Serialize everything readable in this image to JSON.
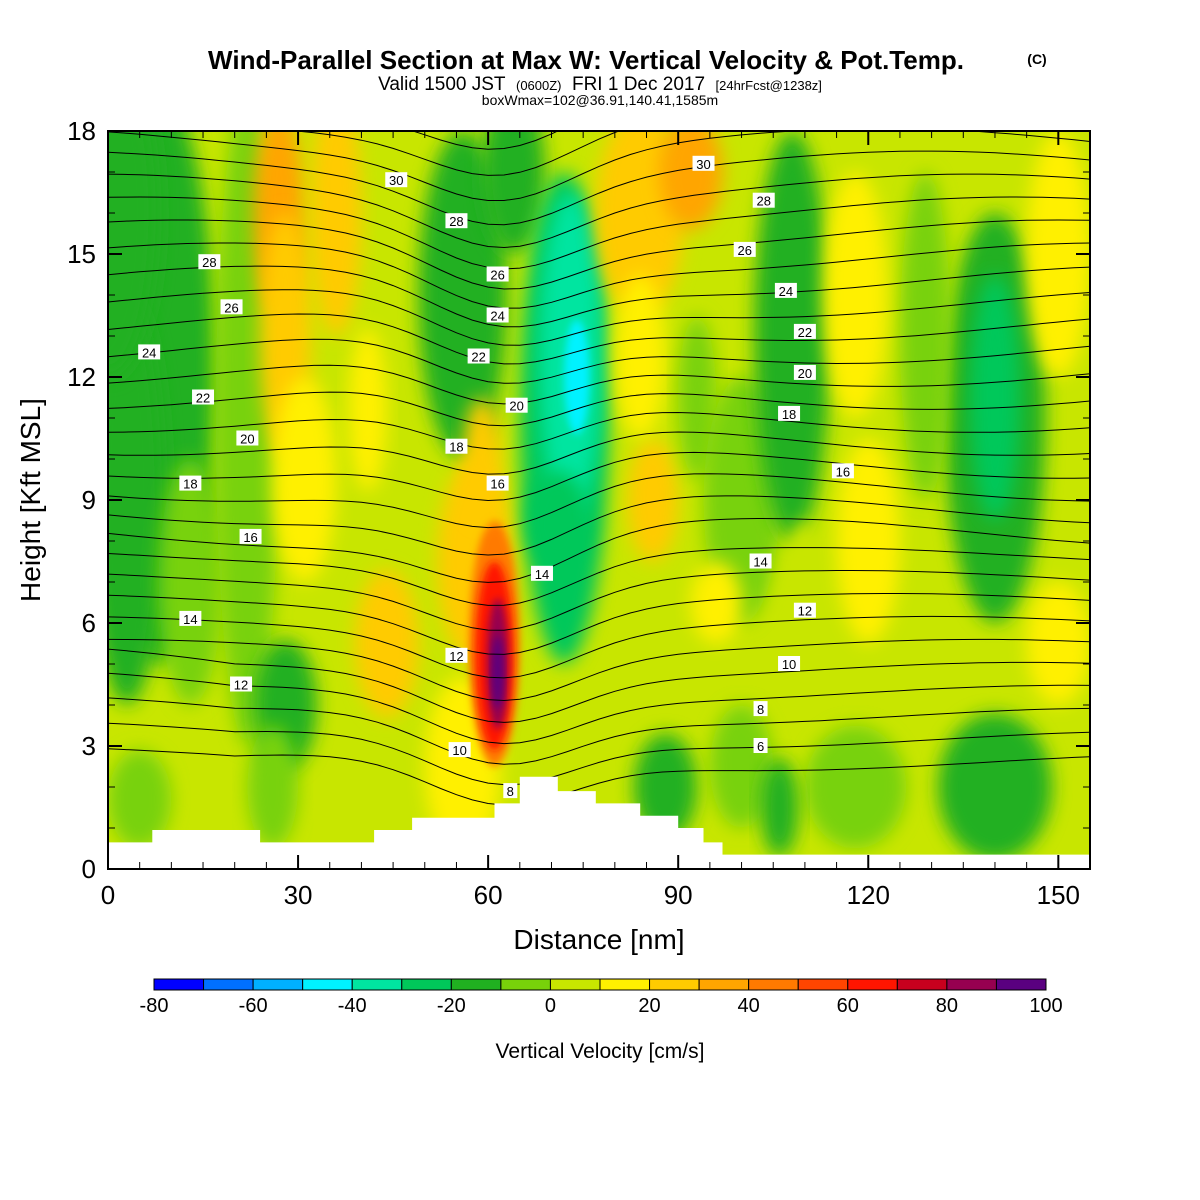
{
  "title": {
    "main": "Wind-Parallel Section at Max W: Vertical Velocity & Pot.Temp.",
    "copyright": "(C)",
    "valid_prefix": "Valid 1500 JST",
    "utc": "(0600Z)",
    "valid_date": "FRI 1 Dec 2017",
    "forecast": "[24hrFcst@1238z]",
    "box_info": "boxWmax=102@36.91,140.41,1585m"
  },
  "chart_data": {
    "type": "heatmap",
    "xlabel": "Distance [nm]",
    "ylabel": "Height [Kft MSL]",
    "xlim": [
      0,
      155
    ],
    "ylim": [
      0,
      18
    ],
    "xticks": [
      0,
      30,
      60,
      90,
      120,
      150
    ],
    "yticks": [
      0,
      3,
      6,
      9,
      12,
      15,
      18
    ],
    "colorbar": {
      "label": "Vertical Velocity [cm/s]",
      "ticks": [
        -80,
        -60,
        -40,
        -20,
        0,
        20,
        40,
        60,
        80,
        100
      ],
      "levels": [
        -80,
        -70,
        -60,
        -50,
        -40,
        -30,
        -20,
        -10,
        0,
        10,
        20,
        30,
        40,
        50,
        60,
        70,
        80,
        90,
        100
      ],
      "colors": [
        "#0000ff",
        "#0070ff",
        "#00b0ff",
        "#00f2ff",
        "#00e5a0",
        "#00c85a",
        "#20b020",
        "#78d20a",
        "#c8e600",
        "#fff000",
        "#ffcb00",
        "#ffa500",
        "#ff7a00",
        "#ff4500",
        "#ff1500",
        "#c8001e",
        "#960050",
        "#5a0080"
      ]
    },
    "fields": [
      {
        "name": "vertical_velocity",
        "units": "cm/s"
      },
      {
        "name": "potential_temperature_contours"
      }
    ],
    "terrain_profile": [
      [
        0,
        0.65
      ],
      [
        7,
        0.65
      ],
      [
        7,
        0.95
      ],
      [
        24,
        0.95
      ],
      [
        24,
        0.65
      ],
      [
        42,
        0.65
      ],
      [
        42,
        0.95
      ],
      [
        48,
        0.95
      ],
      [
        48,
        1.25
      ],
      [
        55,
        1.25
      ],
      [
        55,
        1.25
      ],
      [
        61,
        1.25
      ],
      [
        61,
        1.6
      ],
      [
        65,
        1.6
      ],
      [
        65,
        2.25
      ],
      [
        71,
        2.25
      ],
      [
        71,
        1.9
      ],
      [
        77,
        1.9
      ],
      [
        77,
        1.6
      ],
      [
        84,
        1.6
      ],
      [
        84,
        1.3
      ],
      [
        90,
        1.3
      ],
      [
        90,
        1.0
      ],
      [
        94,
        1.0
      ],
      [
        94,
        0.65
      ],
      [
        97,
        0.65
      ],
      [
        97,
        0.35
      ],
      [
        155,
        0.35
      ]
    ],
    "contour_labels": [
      {
        "text": "30",
        "x": 45.5,
        "y": 16.8
      },
      {
        "text": "28",
        "x": 55,
        "y": 15.8
      },
      {
        "text": "26",
        "x": 61.5,
        "y": 14.5
      },
      {
        "text": "24",
        "x": 61.5,
        "y": 13.5
      },
      {
        "text": "22",
        "x": 58.5,
        "y": 12.5
      },
      {
        "text": "20",
        "x": 64.5,
        "y": 11.3
      },
      {
        "text": "18",
        "x": 55,
        "y": 10.3
      },
      {
        "text": "16",
        "x": 61.5,
        "y": 9.4
      },
      {
        "text": "14",
        "x": 68.5,
        "y": 7.2
      },
      {
        "text": "12",
        "x": 55,
        "y": 5.2
      },
      {
        "text": "10",
        "x": 55.5,
        "y": 2.9
      },
      {
        "text": "8",
        "x": 63.5,
        "y": 1.9
      },
      {
        "text": "28",
        "x": 16,
        "y": 14.8
      },
      {
        "text": "26",
        "x": 19.5,
        "y": 13.7
      },
      {
        "text": "24",
        "x": 6.5,
        "y": 12.6
      },
      {
        "text": "22",
        "x": 15,
        "y": 11.5
      },
      {
        "text": "20",
        "x": 22,
        "y": 10.5
      },
      {
        "text": "18",
        "x": 13,
        "y": 9.4
      },
      {
        "text": "16",
        "x": 22.5,
        "y": 8.1
      },
      {
        "text": "14",
        "x": 13,
        "y": 6.1
      },
      {
        "text": "12",
        "x": 21,
        "y": 4.5
      },
      {
        "text": "30",
        "x": 94,
        "y": 17.2
      },
      {
        "text": "28",
        "x": 103.5,
        "y": 16.3
      },
      {
        "text": "26",
        "x": 100.5,
        "y": 15.1
      },
      {
        "text": "24",
        "x": 107,
        "y": 14.1
      },
      {
        "text": "22",
        "x": 110,
        "y": 13.1
      },
      {
        "text": "20",
        "x": 110,
        "y": 12.1
      },
      {
        "text": "18",
        "x": 107.5,
        "y": 11.1
      },
      {
        "text": "16",
        "x": 116,
        "y": 9.7
      },
      {
        "text": "14",
        "x": 103,
        "y": 7.5
      },
      {
        "text": "12",
        "x": 110,
        "y": 6.3
      },
      {
        "text": "10",
        "x": 107.5,
        "y": 5.0
      },
      {
        "text": "8",
        "x": 103,
        "y": 3.9
      },
      {
        "text": "6",
        "x": 103,
        "y": 3.0
      }
    ]
  }
}
